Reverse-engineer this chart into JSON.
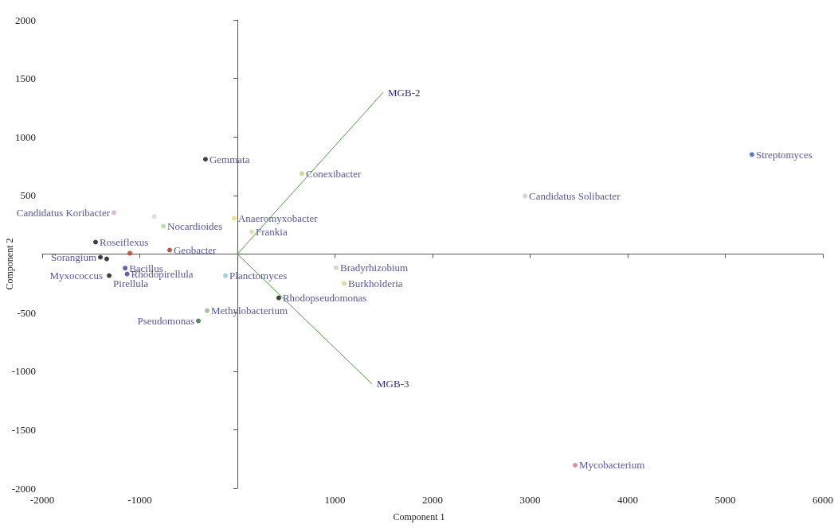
{
  "chart_data": {
    "type": "scatter",
    "xlabel": "Component 1",
    "ylabel": "Component 2",
    "xlim": [
      -2000,
      6000
    ],
    "xticks": [
      -2000,
      -1000,
      {
        "value": 0,
        "label": null
      },
      1000,
      2000,
      3000,
      4000,
      5000,
      6000
    ],
    "ylim": [
      -2000,
      2000
    ],
    "yticks": [
      -2000,
      -1500,
      -1000,
      -500,
      {
        "value": 0,
        "label": null
      },
      500,
      1000,
      1500,
      2000
    ],
    "legend": false,
    "line_style": "solid",
    "series": [
      {
        "marker": "circle",
        "x": [
          -327,
          661,
          5273,
          2947,
          -33,
          147,
          -759,
          -694,
          -1265,
          -853,
          -1453,
          -1404,
          -1339,
          -1102,
          -1314,
          -1150,
          -1130,
          -122,
          1012,
          1094,
          424,
          -310,
          -400,
          3461
        ],
        "values": [
          810,
          687,
          850,
          497,
          306,
          190,
          238,
          34,
          354,
          320,
          102,
          -27,
          -41,
          7,
          -184,
          -120,
          -170,
          -184,
          -116,
          -252,
          -374,
          -483,
          -571,
          -1803
        ],
        "value_labels": [
          "Gemmata",
          "Conexibacter",
          "Streptomyces",
          "Candidatus Solibacter",
          "Anaeromyxobacter",
          "Frankia",
          "Nocardioides",
          "Geobacter",
          "Candidatus Koribacter",
          null,
          "Roseiflexus",
          "Sorangium",
          "Myxococcus",
          null,
          "Pirellula",
          "Bacillus",
          "Rhodopirellula",
          "Planctomyces",
          "Bradyrhizobium",
          "Burkholderia",
          "Rhodopseudomonas",
          "Methylobacterium",
          "Pseudomonas",
          "Mycobacterium"
        ],
        "colors": [
          "#111111",
          "#b8d878",
          "#3a5ab8",
          "#c8c8e8",
          "#f0d870",
          "#c8e0a8",
          "#a8d8a8",
          "#a03020",
          "#d8a8c8",
          "#c8d8e8",
          "#111111",
          "#111111",
          "#111111",
          "#c03020",
          "#111111",
          "#3a3aa0",
          "#3a3aa0",
          "#88c8e0",
          "#d8c8a8",
          "#e0d080",
          "#111111",
          "#88b888",
          "#2a6a3a",
          "#e07080"
        ]
      },
      {
        "type": "line",
        "marker": "none",
        "name": "MGB-2",
        "color": "#4a9a3a",
        "x": [
          0,
          1494
        ],
        "values": [
          0,
          1381
        ]
      },
      {
        "type": "line",
        "marker": "none",
        "name": "MGB-3",
        "color": "#4a9a3a",
        "x": [
          0,
          1380
        ],
        "values": [
          0,
          -1109
        ]
      }
    ]
  }
}
